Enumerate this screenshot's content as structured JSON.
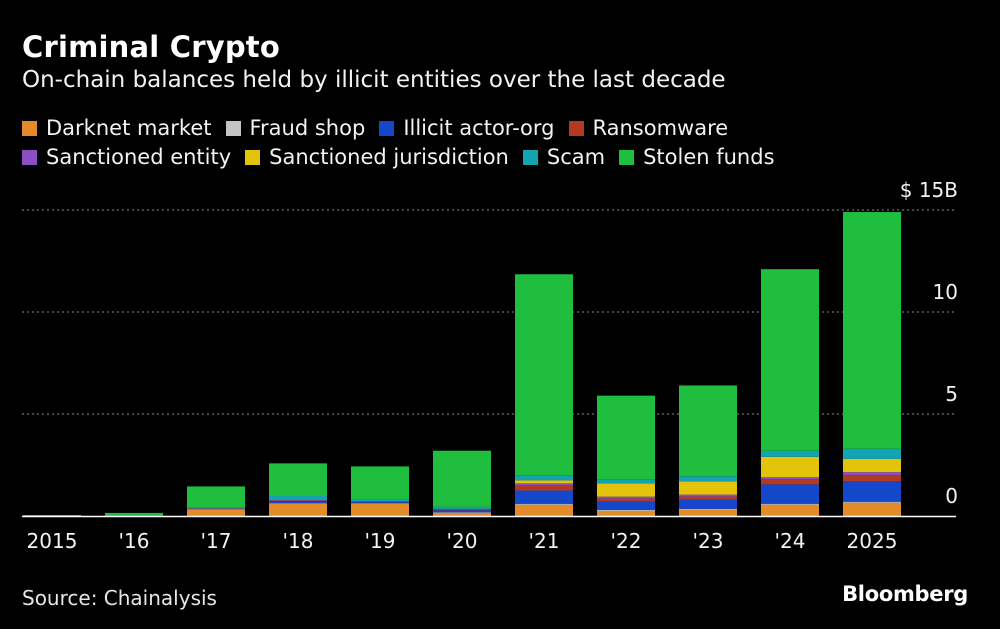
{
  "title": "Criminal Crypto",
  "subtitle": "On-chain balances held by illicit entities over the last decade",
  "source": "Source: Chainalysis",
  "brand": "Bloomberg",
  "colors": {
    "background": "#000000",
    "gridline": "#8a8a8a",
    "Darknet market": "#e48b29",
    "Fraud shop": "#c4c4c4",
    "Illicit actor-org": "#1447c9",
    "Ransomware": "#b33a21",
    "Sanctioned entity": "#8b4fc2",
    "Sanctioned jurisdiction": "#e4c40b",
    "Scam": "#13a4b1",
    "Stolen funds": "#1fbe3f"
  },
  "chart_data": {
    "type": "bar",
    "stacked": true,
    "title": "Criminal Crypto",
    "subtitle": "On-chain balances held by illicit entities over the last decade",
    "categories": [
      "2015",
      "'16",
      "'17",
      "'18",
      "'19",
      "'20",
      "'21",
      "'22",
      "'23",
      "'24",
      "2025"
    ],
    "ylim": [
      0,
      15
    ],
    "yticks": [
      0,
      5,
      10,
      15
    ],
    "ytick_labels": [
      "0",
      "5",
      "10",
      "$ 15B"
    ],
    "ylabel": "",
    "xlabel": "",
    "grid": true,
    "legend_position": "top",
    "series": [
      {
        "name": "Darknet market",
        "values": [
          0.0,
          0.02,
          0.3,
          0.6,
          0.6,
          0.15,
          0.55,
          0.25,
          0.3,
          0.55,
          0.65
        ]
      },
      {
        "name": "Fraud shop",
        "values": [
          0.0,
          0.0,
          0.02,
          0.03,
          0.03,
          0.03,
          0.05,
          0.05,
          0.05,
          0.05,
          0.05
        ]
      },
      {
        "name": "Illicit actor-org",
        "values": [
          0.0,
          0.0,
          0.03,
          0.1,
          0.05,
          0.1,
          0.65,
          0.4,
          0.45,
          0.95,
          1.0
        ]
      },
      {
        "name": "Ransomware",
        "values": [
          0.0,
          0.0,
          0.02,
          0.03,
          0.03,
          0.05,
          0.25,
          0.15,
          0.15,
          0.25,
          0.3
        ]
      },
      {
        "name": "Sanctioned entity",
        "values": [
          0.0,
          0.0,
          0.01,
          0.02,
          0.02,
          0.02,
          0.1,
          0.1,
          0.1,
          0.1,
          0.15
        ]
      },
      {
        "name": "Sanctioned jurisdiction",
        "values": [
          0.0,
          0.0,
          0.0,
          0.0,
          0.0,
          0.0,
          0.15,
          0.65,
          0.65,
          1.0,
          0.65
        ]
      },
      {
        "name": "Scam",
        "values": [
          0.0,
          0.03,
          0.02,
          0.2,
          0.1,
          0.1,
          0.25,
          0.2,
          0.25,
          0.3,
          0.5
        ]
      },
      {
        "name": "Stolen funds",
        "values": [
          0.05,
          0.1,
          1.05,
          1.6,
          1.6,
          2.75,
          9.85,
          4.1,
          4.45,
          8.9,
          11.6
        ]
      }
    ]
  }
}
